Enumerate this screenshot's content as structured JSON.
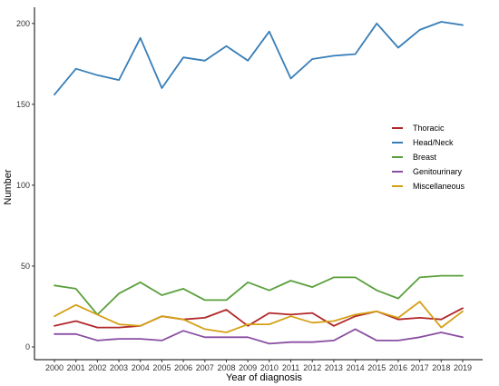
{
  "chart_data": {
    "type": "line",
    "title": "",
    "xlabel": "Year of diagnosis",
    "ylabel": "Number",
    "ylim": [
      0,
      210
    ],
    "xlim": [
      2000,
      2019
    ],
    "yticks": [
      0,
      50,
      100,
      150,
      200
    ],
    "grid": false,
    "legend_position": "right",
    "x": [
      2000,
      2001,
      2002,
      2003,
      2004,
      2005,
      2006,
      2007,
      2008,
      2009,
      2010,
      2011,
      2012,
      2013,
      2014,
      2015,
      2016,
      2017,
      2018,
      2019
    ],
    "series": [
      {
        "name": "Thoracic",
        "color": "#b2282a",
        "values": [
          13,
          16,
          12,
          12,
          13,
          19,
          17,
          18,
          23,
          13,
          21,
          20,
          21,
          13,
          19,
          22,
          17,
          18,
          17,
          24
        ]
      },
      {
        "name": "Head/Neck",
        "color": "#377eb8",
        "values": [
          156,
          172,
          168,
          165,
          191,
          160,
          179,
          177,
          186,
          177,
          195,
          166,
          178,
          180,
          181,
          200,
          185,
          196,
          201,
          199
        ]
      },
      {
        "name": "Breast",
        "color": "#5aa03c",
        "values": [
          38,
          36,
          20,
          33,
          40,
          32,
          36,
          29,
          29,
          40,
          35,
          41,
          37,
          43,
          43,
          35,
          30,
          43,
          44,
          44
        ]
      },
      {
        "name": "Genitourinary",
        "color": "#8a4fa2",
        "values": [
          8,
          8,
          4,
          5,
          5,
          4,
          10,
          6,
          6,
          6,
          2,
          3,
          3,
          4,
          11,
          4,
          4,
          6,
          9,
          6
        ]
      },
      {
        "name": "Miscellaneous",
        "color": "#d4a017",
        "values": [
          19,
          26,
          20,
          14,
          13,
          19,
          17,
          11,
          9,
          14,
          14,
          19,
          15,
          16,
          20,
          22,
          18,
          28,
          12,
          22
        ]
      }
    ]
  }
}
